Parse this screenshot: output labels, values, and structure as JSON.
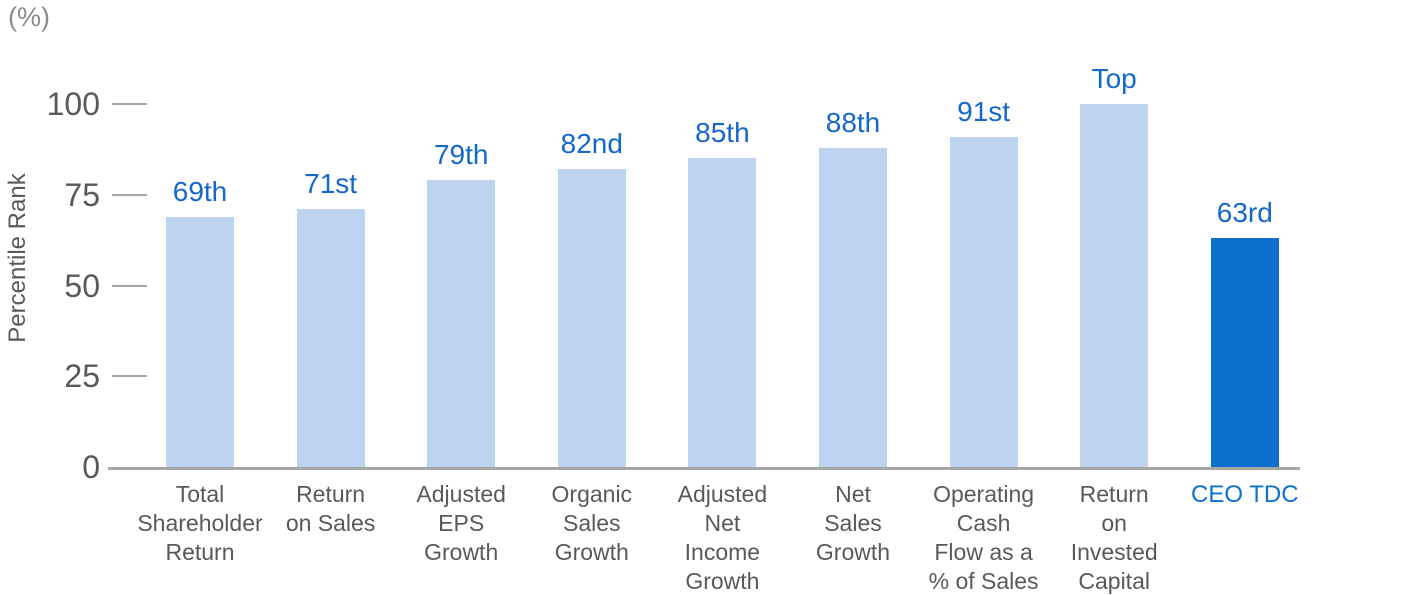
{
  "chart_data": {
    "type": "bar",
    "title": "",
    "unit": "(%)",
    "ylabel": "Percentile Rank",
    "xlabel": "",
    "ylim": [
      0,
      100
    ],
    "yticks": [
      0,
      25,
      50,
      75,
      100
    ],
    "grid": false,
    "legend": null,
    "categories": [
      "Total Shareholder Return",
      "Return on Sales",
      "Adjusted EPS Growth",
      "Organic Sales Growth",
      "Adjusted Net Income Growth",
      "Net Sales Growth",
      "Operating Cash Flow as a % of Sales",
      "Return on Invested Capital",
      "CEO TDC"
    ],
    "category_label_lines": [
      [
        "Total",
        "Shareholder",
        "Return"
      ],
      [
        "Return",
        "on Sales"
      ],
      [
        "Adjusted",
        "EPS",
        "Growth"
      ],
      [
        "Organic",
        "Sales",
        "Growth"
      ],
      [
        "Adjusted",
        "Net",
        "Income",
        "Growth"
      ],
      [
        "Net",
        "Sales",
        "Growth"
      ],
      [
        "Operating",
        "Cash",
        "Flow as a",
        "% of Sales"
      ],
      [
        "Return",
        "on",
        "Invested",
        "Capital"
      ],
      [
        "CEO TDC"
      ]
    ],
    "values": [
      69,
      71,
      79,
      82,
      85,
      88,
      91,
      100,
      63
    ],
    "value_labels": [
      "69th",
      "71st",
      "79th",
      "82nd",
      "85th",
      "88th",
      "91st",
      "Top",
      "63rd"
    ],
    "highlight_index": 8,
    "colors": {
      "bar": "#bed3f0",
      "highlight_bar": "#0d70cd",
      "value_label": "#1568c8",
      "highlight_category_label": "#0d70cd",
      "axis_text": "#595959",
      "axis_line": "#a6a6a6",
      "unit_text": "#8c8c8c"
    }
  }
}
